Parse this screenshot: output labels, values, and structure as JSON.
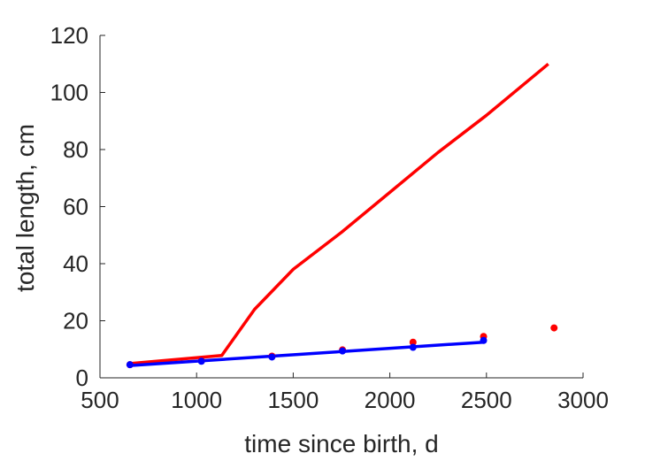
{
  "chart_data": {
    "type": "line",
    "title": "",
    "xlabel": "time since birth, d",
    "ylabel": "total length, cm",
    "xlim": [
      500,
      3000
    ],
    "ylim": [
      0,
      120
    ],
    "xticks": [
      500,
      1000,
      1500,
      2000,
      2500,
      3000
    ],
    "yticks": [
      0,
      20,
      40,
      60,
      80,
      100,
      120
    ],
    "grid": false,
    "legend": "none",
    "series": [
      {
        "kind": "line",
        "color": "#ff0000",
        "x": [
          655,
          1130,
          1300,
          1500,
          1750,
          2000,
          2250,
          2500,
          2820
        ],
        "y": [
          5.0,
          7.8,
          24,
          38,
          51,
          65,
          79,
          92,
          110
        ]
      },
      {
        "kind": "line",
        "color": "#0000ff",
        "x": [
          655,
          2485
        ],
        "y": [
          4.3,
          12.5
        ]
      },
      {
        "kind": "scatter",
        "color": "#ff0000",
        "x": [
          655,
          1025,
          1390,
          1755,
          2120,
          2485,
          2850
        ],
        "y": [
          4.6,
          6.0,
          7.6,
          9.8,
          12.5,
          14.5,
          17.5
        ]
      },
      {
        "kind": "scatter",
        "color": "#0000ff",
        "x": [
          655,
          1025,
          1390,
          1755,
          2120,
          2485
        ],
        "y": [
          4.6,
          5.8,
          7.3,
          9.4,
          10.7,
          13.1
        ]
      }
    ]
  }
}
